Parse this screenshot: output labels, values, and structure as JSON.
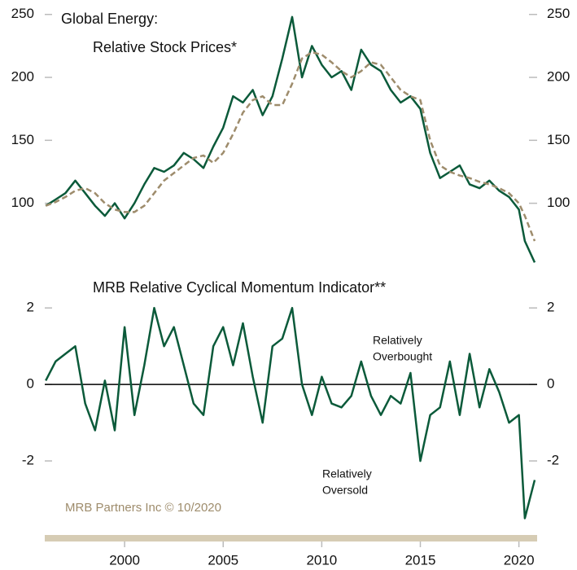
{
  "chart_data": [
    {
      "type": "line",
      "title": [
        "Global Energy:",
        "Relative Stock Prices*"
      ],
      "x": [
        1996.0,
        1996.5,
        1997.0,
        1997.5,
        1998.0,
        1998.5,
        1999.0,
        1999.5,
        2000.0,
        2000.5,
        2001.0,
        2001.5,
        2002.0,
        2002.5,
        2003.0,
        2003.5,
        2004.0,
        2004.5,
        2005.0,
        2005.5,
        2006.0,
        2006.5,
        2007.0,
        2007.5,
        2008.0,
        2008.5,
        2009.0,
        2009.5,
        2010.0,
        2010.5,
        2011.0,
        2011.5,
        2012.0,
        2012.5,
        2013.0,
        2013.5,
        2014.0,
        2014.5,
        2015.0,
        2015.5,
        2016.0,
        2016.5,
        2017.0,
        2017.5,
        2018.0,
        2018.5,
        2019.0,
        2019.5,
        2020.0,
        2020.3,
        2020.8
      ],
      "series": [
        {
          "color": "#0b5a3a",
          "style": "solid",
          "values": [
            98,
            103,
            108,
            118,
            108,
            98,
            90,
            100,
            88,
            100,
            115,
            128,
            125,
            130,
            140,
            135,
            128,
            145,
            160,
            185,
            180,
            190,
            170,
            185,
            215,
            248,
            200,
            225,
            210,
            200,
            205,
            190,
            222,
            210,
            205,
            190,
            180,
            185,
            175,
            140,
            120,
            125,
            130,
            115,
            112,
            118,
            110,
            105,
            95,
            70,
            53
          ]
        },
        {
          "color": "#9e8c6c",
          "style": "dashed",
          "values": [
            98,
            101,
            105,
            110,
            112,
            108,
            100,
            95,
            93,
            93,
            98,
            108,
            118,
            124,
            130,
            136,
            138,
            132,
            140,
            155,
            172,
            182,
            185,
            178,
            178,
            195,
            215,
            220,
            218,
            212,
            205,
            200,
            205,
            212,
            210,
            200,
            190,
            185,
            182,
            150,
            130,
            125,
            122,
            120,
            117,
            115,
            112,
            108,
            100,
            90,
            70
          ]
        }
      ],
      "xlim": [
        1995.95,
        2020.8
      ],
      "ylim": [
        48,
        255
      ],
      "yticks": [
        100,
        150,
        200,
        250
      ]
    },
    {
      "type": "line",
      "title": "MRB Relative Cyclical Momentum Indicator**",
      "x": [
        1996.0,
        1996.5,
        1997.0,
        1997.5,
        1998.0,
        1998.5,
        1999.0,
        1999.5,
        2000.0,
        2000.5,
        2001.0,
        2001.5,
        2002.0,
        2002.5,
        2003.0,
        2003.5,
        2004.0,
        2004.5,
        2005.0,
        2005.5,
        2006.0,
        2006.5,
        2007.0,
        2007.5,
        2008.0,
        2008.5,
        2009.0,
        2009.5,
        2010.0,
        2010.5,
        2011.0,
        2011.5,
        2012.0,
        2012.5,
        2013.0,
        2013.5,
        2014.0,
        2014.5,
        2015.0,
        2015.5,
        2016.0,
        2016.5,
        2017.0,
        2017.5,
        2018.0,
        2018.5,
        2019.0,
        2019.5,
        2020.0,
        2020.3,
        2020.8
      ],
      "series": [
        {
          "color": "#0b5a3a",
          "style": "solid",
          "values": [
            0.1,
            0.6,
            0.8,
            1.0,
            -0.5,
            -1.2,
            0.1,
            -1.2,
            1.5,
            -0.8,
            0.5,
            2.0,
            1.0,
            1.5,
            0.5,
            -0.5,
            -0.8,
            1.0,
            1.5,
            0.5,
            1.6,
            0.2,
            -1.0,
            1.0,
            1.2,
            2.0,
            0.0,
            -0.8,
            0.2,
            -0.5,
            -0.6,
            -0.3,
            0.6,
            -0.3,
            -0.8,
            -0.3,
            -0.5,
            0.3,
            -2.0,
            -0.8,
            -0.6,
            0.6,
            -0.8,
            0.8,
            -0.6,
            0.4,
            -0.2,
            -1.0,
            -0.8,
            -3.5,
            -2.5
          ]
        }
      ],
      "xlim": [
        1995.95,
        2020.8
      ],
      "xticks": [
        2000,
        2005,
        2010,
        2015,
        2020
      ],
      "ylim": [
        -4,
        2.6
      ],
      "yticks": [
        -2,
        0,
        2
      ],
      "zero_line": 0,
      "annotations": [
        [
          "Relatively",
          "Overbought"
        ],
        [
          "Relatively",
          "Oversold"
        ],
        [
          "MRB Partners Inc © 10/2020"
        ]
      ]
    }
  ]
}
